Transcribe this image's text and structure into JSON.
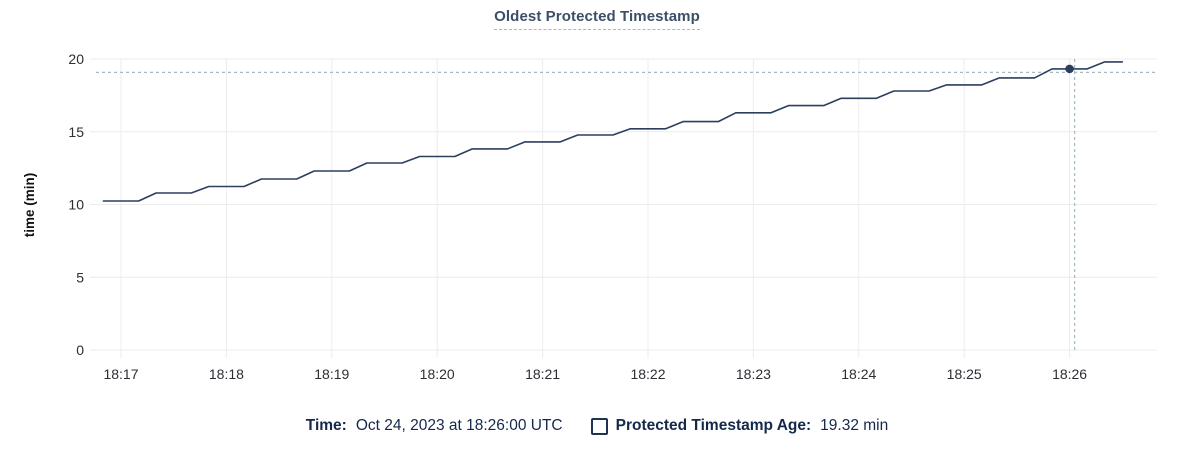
{
  "chart_data": {
    "type": "line",
    "title": "Oldest Protected Timestamp",
    "xlabel": "",
    "ylabel": "time (min)",
    "ylim": [
      0,
      20
    ],
    "yticks": [
      0,
      5,
      10,
      15,
      20
    ],
    "x_tick_labels": [
      "18:17",
      "18:18",
      "18:19",
      "18:20",
      "18:21",
      "18:22",
      "18:23",
      "18:24",
      "18:25",
      "18:26"
    ],
    "x_tick_interval_sec": 60,
    "t_sec_origin": "18:17",
    "grid": true,
    "legend_position": "bottom",
    "series": [
      {
        "name": "Protected Timestamp Age",
        "color": "#2c3f5e",
        "flat_duration_sec": 20,
        "level_duration_sec": 30,
        "end_t_sec": 570,
        "step_levels": [
          {
            "t_sec": -10,
            "value": 10.24
          },
          {
            "t_sec": 20,
            "value": 10.79
          },
          {
            "t_sec": 50,
            "value": 11.24
          },
          {
            "t_sec": 80,
            "value": 11.75
          },
          {
            "t_sec": 110,
            "value": 12.3
          },
          {
            "t_sec": 140,
            "value": 12.85
          },
          {
            "t_sec": 170,
            "value": 13.3
          },
          {
            "t_sec": 200,
            "value": 13.82
          },
          {
            "t_sec": 230,
            "value": 14.3
          },
          {
            "t_sec": 260,
            "value": 14.78
          },
          {
            "t_sec": 290,
            "value": 15.2
          },
          {
            "t_sec": 320,
            "value": 15.7
          },
          {
            "t_sec": 350,
            "value": 16.3
          },
          {
            "t_sec": 380,
            "value": 16.8
          },
          {
            "t_sec": 410,
            "value": 17.3
          },
          {
            "t_sec": 440,
            "value": 17.8
          },
          {
            "t_sec": 470,
            "value": 18.22
          },
          {
            "t_sec": 500,
            "value": 18.7
          },
          {
            "t_sec": 530,
            "value": 19.32
          },
          {
            "t_sec": 560,
            "value": 19.8
          }
        ]
      }
    ],
    "hover": {
      "t_sec": 540,
      "time": "18:26:00",
      "value": 19.32
    }
  },
  "legend": {
    "time_label": "Time:",
    "time_value": "Oct 24, 2023 at 18:26:00 UTC",
    "series_label": "Protected Timestamp Age:",
    "series_value": "19.32 min",
    "series_checkbox_checked": false
  },
  "colors": {
    "line": "#2c3f5e",
    "hover_point": "#2c3f5e",
    "crosshair": "#a3b9c6",
    "gridline": "#ececec",
    "title_text": "#3c4e68",
    "title_underline": "#a9b6c8",
    "tick_text": "#2b2f33",
    "legend_text": "#14294a",
    "background": "#ffffff"
  }
}
